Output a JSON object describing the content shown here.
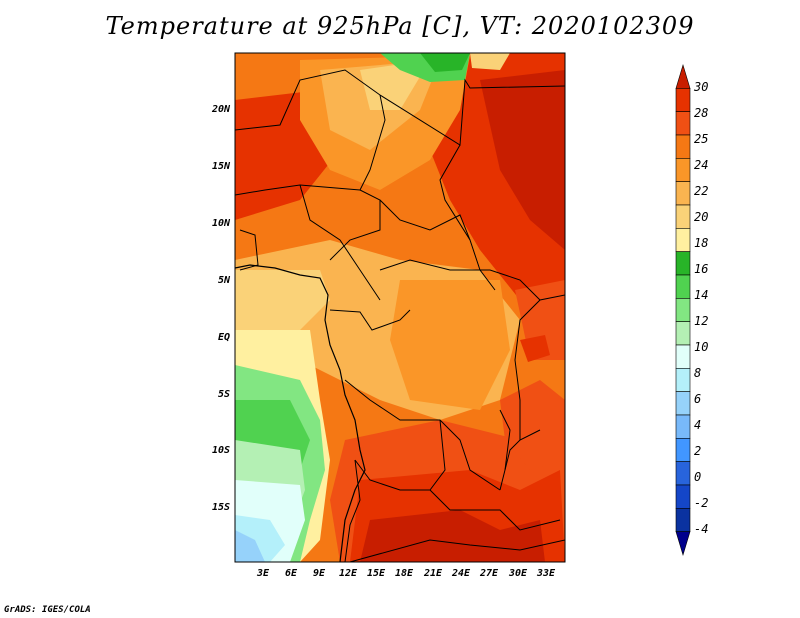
{
  "title": "Temperature at 925hPa [C], VT: 2020102309",
  "credit": "GrADS: IGES/COLA",
  "lat_labels": [
    "20N",
    "15N",
    "10N",
    "5N",
    "EQ",
    "5S",
    "10S",
    "15S"
  ],
  "lon_labels": [
    "3E",
    "6E",
    "9E",
    "12E",
    "15E",
    "18E",
    "21E",
    "24E",
    "27E",
    "30E",
    "33E"
  ],
  "colorbar": {
    "labels": [
      "30",
      "28",
      "25",
      "24",
      "22",
      "20",
      "18",
      "16",
      "14",
      "12",
      "10",
      "8",
      "6",
      "4",
      "2",
      "0",
      "-2",
      "-4"
    ],
    "colors": [
      "#c81e00",
      "#e63200",
      "#f05014",
      "#f57814",
      "#fa9628",
      "#fab450",
      "#fad278",
      "#fff0a0",
      "#28b428",
      "#50d250",
      "#82e682",
      "#b4f0b4",
      "#e1fffa",
      "#b4f0fa",
      "#96d2fa",
      "#78b9fa",
      "#4196ff",
      "#2864dc",
      "#1446c8",
      "#0a32a0",
      "#00008c"
    ]
  },
  "legend_values": [
    -4,
    -2,
    0,
    2,
    4,
    6,
    8,
    10,
    12,
    14,
    16,
    18,
    20,
    22,
    24,
    25,
    28,
    30
  ]
}
